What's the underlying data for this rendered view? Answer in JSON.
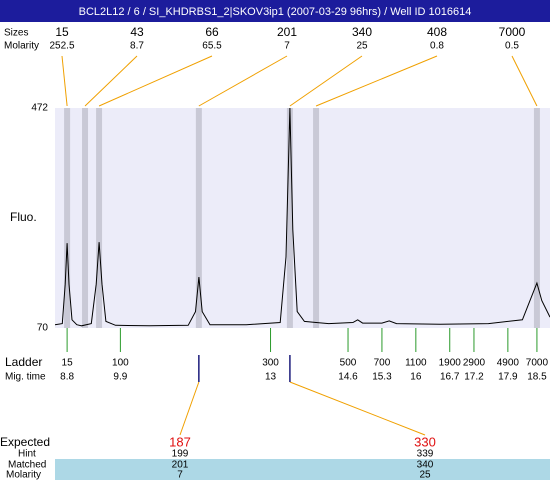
{
  "chart_data": {
    "type": "electropherogram",
    "title": "BCL2L12 / 6 / SI_KHDRBS1_2|SKOV3ip1 (2007-03-29 96hrs) / Well ID 1016614",
    "size_label": "Sizes",
    "molarity_label": "Molarity",
    "y_label": "Fluo.",
    "ylim": [
      70,
      472
    ],
    "yticks": [
      70,
      472
    ],
    "xlim": [
      8.55,
      18.77
    ],
    "plot_color": "#ececf9",
    "band_color": "#c9c9d6",
    "link_color": "#f0a000",
    "ladder_color": "#2a9a2a",
    "trace_color": "#000000",
    "peaks": {
      "sizes": [
        15,
        43,
        66,
        201,
        340,
        408,
        7000
      ],
      "molarity": [
        252.5,
        8.7,
        65.5,
        7,
        25,
        0.8,
        0.5
      ],
      "times": [
        8.8,
        9.17,
        9.46,
        11.52,
        13.4,
        13.94,
        18.5
      ]
    },
    "trace": {
      "x": [
        8.55,
        8.7,
        8.76,
        8.8,
        8.84,
        8.9,
        9.0,
        9.1,
        9.3,
        9.4,
        9.46,
        9.52,
        9.6,
        9.8,
        10.5,
        11.3,
        11.45,
        11.52,
        11.59,
        11.75,
        12.5,
        13.2,
        13.32,
        13.4,
        13.46,
        13.55,
        13.7,
        13.94,
        14.2,
        14.7,
        14.8,
        14.9,
        15.3,
        15.45,
        15.6,
        16.5,
        17.5,
        18.2,
        18.4,
        18.5,
        18.6,
        18.77
      ],
      "y": [
        76,
        78,
        150,
        225,
        150,
        85,
        76,
        74,
        78,
        150,
        227,
        150,
        82,
        75,
        74,
        75,
        100,
        163,
        100,
        76,
        76,
        80,
        200,
        472,
        250,
        100,
        82,
        80,
        78,
        80,
        85,
        79,
        79,
        83,
        78,
        77,
        78,
        85,
        130,
        152,
        120,
        90
      ]
    },
    "ladder": {
      "label": "Ladder",
      "time_label": "Mig. time",
      "sizes": [
        15,
        100,
        300,
        500,
        700,
        1100,
        1900,
        2900,
        4900,
        7000
      ],
      "times": [
        8.8,
        9.9,
        13,
        14.6,
        15.3,
        16,
        16.7,
        17.2,
        17.9,
        18.5
      ]
    },
    "expected": {
      "label": "Expected",
      "hint_label": "Hint",
      "matched_label": "Matched",
      "molarity_label": "Molarity",
      "expected": [
        187,
        330
      ],
      "hint": [
        199,
        339
      ],
      "matched": [
        201,
        340
      ],
      "molarity": [
        7,
        25
      ]
    }
  }
}
